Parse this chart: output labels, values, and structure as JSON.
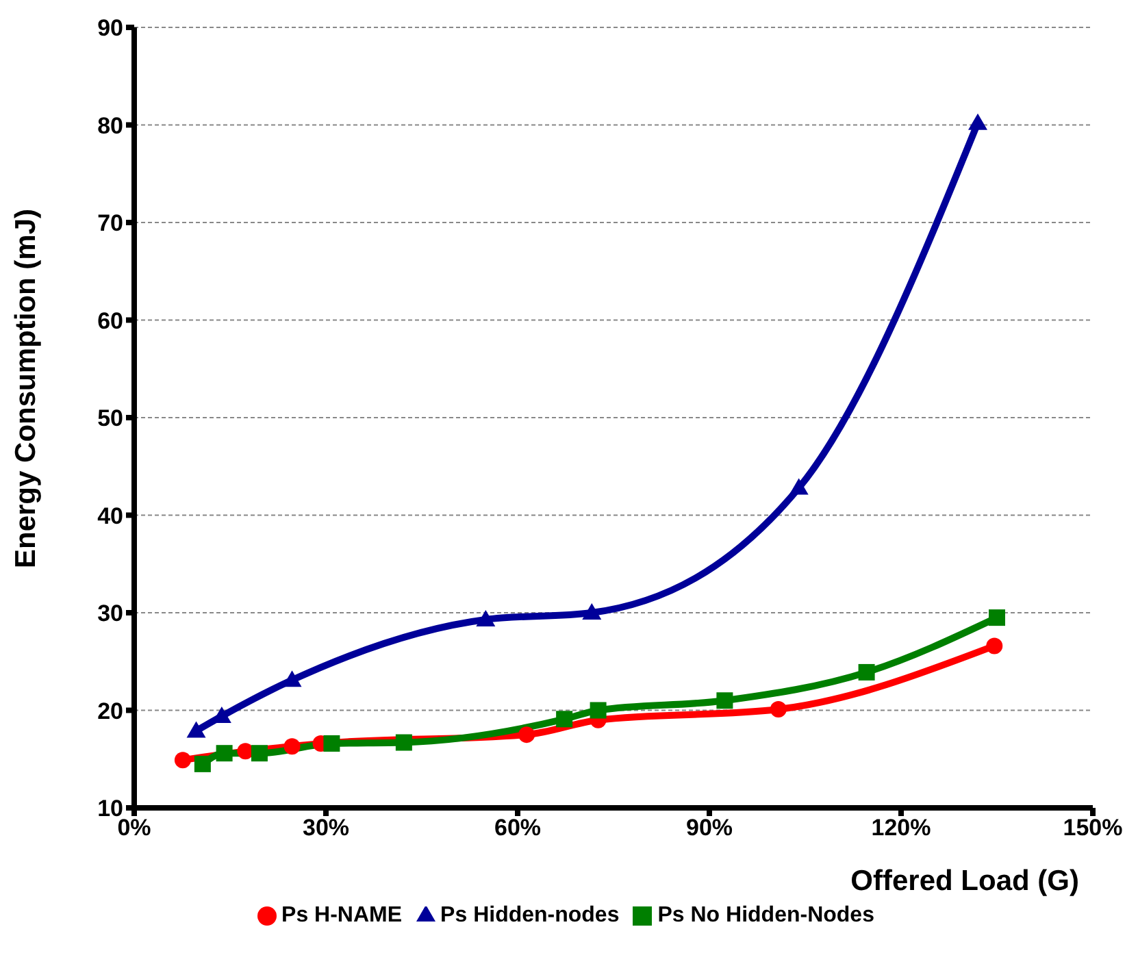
{
  "chart_data": {
    "type": "line",
    "xlabel": "Offered Load (G)",
    "ylabel": "Energy Consumption (mJ)",
    "xlim": [
      0,
      150
    ],
    "xticks": [
      {
        "value": 0,
        "label": "0%"
      },
      {
        "value": 30,
        "label": "30%"
      },
      {
        "value": 60,
        "label": "60%"
      },
      {
        "value": 90,
        "label": "90%"
      },
      {
        "value": 120,
        "label": "120%"
      },
      {
        "value": 150,
        "label": "150%"
      }
    ],
    "ylim": [
      10,
      90
    ],
    "yticks": [
      10,
      20,
      30,
      40,
      50,
      60,
      70,
      80,
      90
    ],
    "grid": "y",
    "legend": "bottom",
    "line_style": "solid",
    "series": [
      {
        "name": "Ps H-NAME",
        "color": "#ff0000",
        "marker": "circle",
        "x": [
          7.6,
          17.4,
          24.7,
          29.2,
          61.4,
          72.6,
          100.8,
          134.6
        ],
        "values": [
          14.9,
          15.8,
          16.3,
          16.6,
          17.5,
          19.0,
          20.1,
          26.6
        ]
      },
      {
        "name": "Ps No Hidden-Nodes",
        "color": "#007f00",
        "marker": "square",
        "x": [
          10.7,
          14.1,
          19.6,
          30.9,
          42.2,
          67.3,
          72.6,
          92.4,
          114.6,
          135
        ],
        "values": [
          14.5,
          15.6,
          15.6,
          16.6,
          16.7,
          19.1,
          20.0,
          21.0,
          23.9,
          29.5
        ]
      },
      {
        "name": "Ps Hidden-nodes",
        "color": "#000099",
        "marker": "triangle",
        "x": [
          9.7,
          13.7,
          24.7,
          55,
          71.6,
          104,
          132
        ],
        "values": [
          17.9,
          19.4,
          23.1,
          29.3,
          30.0,
          42.8,
          80.2
        ]
      }
    ]
  }
}
